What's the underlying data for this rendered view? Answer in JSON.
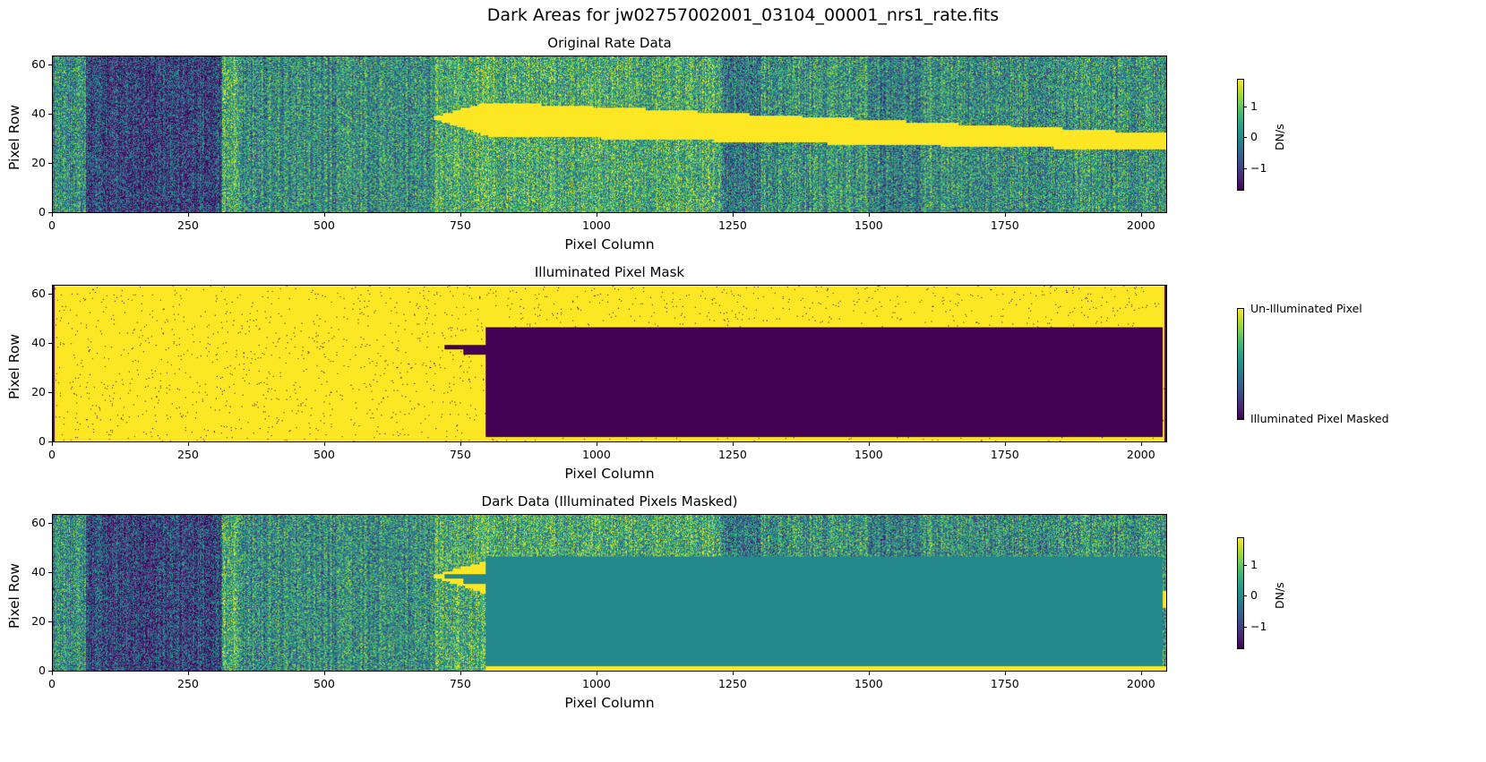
{
  "title": "Dark Areas for jw02757002001_03104_00001_nrs1_rate.fits",
  "chart_data": [
    {
      "type": "heatmap",
      "title": "Original Rate Data",
      "xlabel": "Pixel Column",
      "ylabel": "Pixel Row",
      "xlim": [
        0,
        2048
      ],
      "ylim": [
        -0.5,
        63.5
      ],
      "xticks": [
        "0",
        "250",
        "500",
        "750",
        "1000",
        "1250",
        "1500",
        "1750",
        "2000"
      ],
      "yticks": [
        "0",
        "20",
        "40",
        "60"
      ],
      "colormap": "viridis",
      "colorbar": {
        "label": "DN/s",
        "range": [
          -1.66,
          1.89
        ],
        "ticks": [
          "1",
          "0",
          "−1"
        ]
      }
    },
    {
      "type": "heatmap",
      "title": "Illuminated Pixel Mask",
      "xlabel": "Pixel Column",
      "ylabel": "Pixel Row",
      "xlim": [
        0,
        2048
      ],
      "ylim": [
        -0.5,
        63.5
      ],
      "xticks": [
        "0",
        "250",
        "500",
        "750",
        "1000",
        "1250",
        "1500",
        "1750",
        "2000"
      ],
      "yticks": [
        "0",
        "20",
        "40",
        "60"
      ],
      "colormap": "viridis",
      "masked_region": {
        "columns": [
          795,
          2040
        ],
        "rows": [
          2,
          46
        ]
      },
      "colorbar": {
        "label": "",
        "ticks": [
          "Un-Illuminated Pixel",
          "Illuminated Pixel Masked"
        ]
      }
    },
    {
      "type": "heatmap",
      "title": "Dark Data (Illuminated Pixels Masked)",
      "xlabel": "Pixel Column",
      "ylabel": "Pixel Row",
      "xlim": [
        0,
        2048
      ],
      "ylim": [
        -0.5,
        63.5
      ],
      "xticks": [
        "0",
        "250",
        "500",
        "750",
        "1000",
        "1250",
        "1500",
        "1750",
        "2000"
      ],
      "yticks": [
        "0",
        "20",
        "40",
        "60"
      ],
      "colormap": "viridis",
      "colorbar": {
        "label": "DN/s",
        "range": [
          -1.66,
          1.89
        ],
        "ticks": [
          "1",
          "0",
          "−1"
        ]
      }
    }
  ]
}
